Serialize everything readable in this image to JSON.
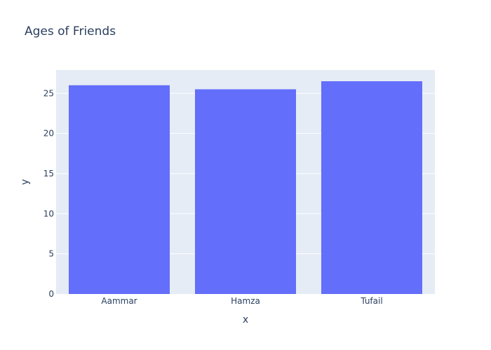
{
  "chart_data": {
    "type": "bar",
    "title": "Ages of Friends",
    "xlabel": "x",
    "ylabel": "y",
    "categories": [
      "Aammar",
      "Hamza",
      "Tufail"
    ],
    "values": [
      26,
      25.5,
      26.5
    ],
    "ylim": [
      0,
      27.9
    ],
    "yticks": [
      0,
      5,
      10,
      15,
      20,
      25
    ],
    "grid": true,
    "legend": "none",
    "colors": {
      "bar": "#636efa",
      "plot_background": "#e5ecf6",
      "gridline": "#ffffff",
      "text": "#2a3f5f"
    }
  }
}
